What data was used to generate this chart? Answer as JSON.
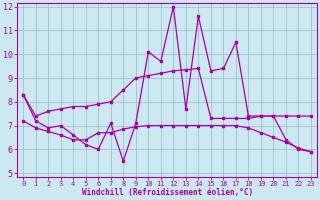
{
  "xlabel": "Windchill (Refroidissement éolien,°C)",
  "background_color": "#cce8f0",
  "line_color": "#aa00aa",
  "grid_color": "#99bbcc",
  "x_values": [
    0,
    1,
    2,
    3,
    4,
    5,
    6,
    7,
    8,
    9,
    10,
    11,
    12,
    13,
    14,
    15,
    16,
    17,
    18,
    19,
    20,
    21,
    22,
    23
  ],
  "y_main": [
    8.3,
    7.2,
    6.9,
    7.0,
    6.6,
    6.2,
    6.0,
    7.1,
    5.5,
    7.1,
    10.1,
    9.7,
    12.0,
    7.7,
    11.6,
    9.3,
    9.4,
    10.5,
    7.4,
    7.4,
    7.4,
    6.4,
    6.0,
    5.9
  ],
  "y_upper": [
    8.3,
    7.4,
    7.6,
    7.7,
    7.8,
    7.8,
    7.9,
    8.0,
    8.5,
    9.0,
    9.1,
    9.2,
    9.3,
    9.35,
    9.4,
    7.3,
    7.3,
    7.3,
    7.3,
    7.4,
    7.4,
    7.4,
    7.4,
    7.4
  ],
  "y_lower": [
    7.2,
    6.9,
    6.75,
    6.6,
    6.4,
    6.4,
    6.7,
    6.7,
    6.85,
    6.95,
    7.0,
    7.0,
    7.0,
    7.0,
    7.0,
    7.0,
    7.0,
    7.0,
    6.9,
    6.7,
    6.5,
    6.3,
    6.05,
    5.9
  ],
  "ylim": [
    5,
    12
  ],
  "xlim_min": -0.5,
  "xlim_max": 23.5,
  "yticks": [
    5,
    6,
    7,
    8,
    9,
    10,
    11,
    12
  ],
  "xticks": [
    0,
    1,
    2,
    3,
    4,
    5,
    6,
    7,
    8,
    9,
    10,
    11,
    12,
    13,
    14,
    15,
    16,
    17,
    18,
    19,
    20,
    21,
    22,
    23
  ]
}
